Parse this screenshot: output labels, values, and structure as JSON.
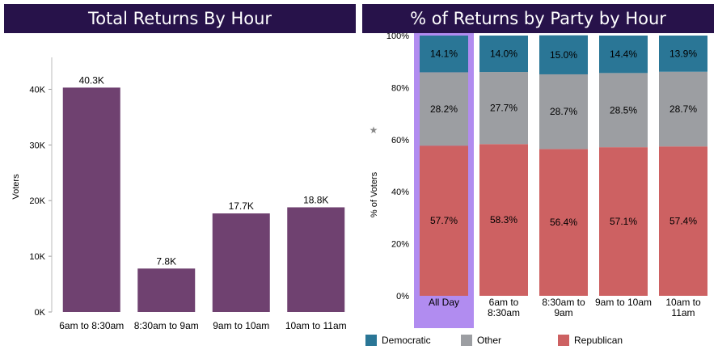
{
  "chart_data": [
    {
      "type": "bar",
      "title": "Total Returns By Hour",
      "ylabel": "Voters",
      "xlabel": "",
      "categories": [
        "6am to 8:30am",
        "8:30am to 9am",
        "9am to 10am",
        "10am to 11am"
      ],
      "values": [
        40300,
        7800,
        17700,
        18800
      ],
      "data_labels": [
        "40.3K",
        "7.8K",
        "17.7K",
        "18.8K"
      ],
      "ylim": [
        0,
        45000
      ],
      "yticks": [
        0,
        10000,
        20000,
        30000,
        40000
      ],
      "ytick_labels": [
        "0K",
        "10K",
        "20K",
        "30K",
        "40K"
      ],
      "color": "#6f4170"
    },
    {
      "type": "bar",
      "stacked": true,
      "title": "% of Returns by Party by Hour",
      "ylabel": "% of Voters",
      "xlabel": "",
      "categories": [
        [
          "All Day"
        ],
        [
          "6am to",
          "8:30am"
        ],
        [
          "8:30am to",
          "9am"
        ],
        [
          "9am to 10am"
        ],
        [
          "10am to",
          "11am"
        ]
      ],
      "highlighted_category": 0,
      "highlight_color": "#b18cf0",
      "ylim": [
        0,
        100
      ],
      "yticks": [
        0,
        20,
        40,
        60,
        80,
        100
      ],
      "ytick_labels": [
        "0%",
        "20%",
        "40%",
        "60%",
        "80%",
        "100%"
      ],
      "series": [
        {
          "name": "Republican",
          "color": "#cd6162",
          "values": [
            57.7,
            58.3,
            56.4,
            57.1,
            57.4
          ],
          "labels": [
            "57.7%",
            "58.3%",
            "56.4%",
            "57.1%",
            "57.4%"
          ]
        },
        {
          "name": "Other",
          "color": "#9c9ea2",
          "values": [
            28.2,
            27.7,
            28.7,
            28.5,
            28.7
          ],
          "labels": [
            "28.2%",
            "27.7%",
            "28.7%",
            "28.5%",
            "28.7%"
          ]
        },
        {
          "name": "Democratic",
          "color": "#2a7696",
          "values": [
            14.1,
            14.0,
            15.0,
            14.4,
            13.9
          ],
          "labels": [
            "14.1%",
            "14.0%",
            "15.0%",
            "14.4%",
            "13.9%"
          ]
        }
      ],
      "legend": {
        "position": "bottom",
        "items": [
          {
            "name": "Democratic",
            "color": "#2a7696"
          },
          {
            "name": "Other",
            "color": "#9c9ea2"
          },
          {
            "name": "Republican",
            "color": "#cd6162"
          }
        ]
      }
    }
  ],
  "title_bar_color": "#27124a"
}
